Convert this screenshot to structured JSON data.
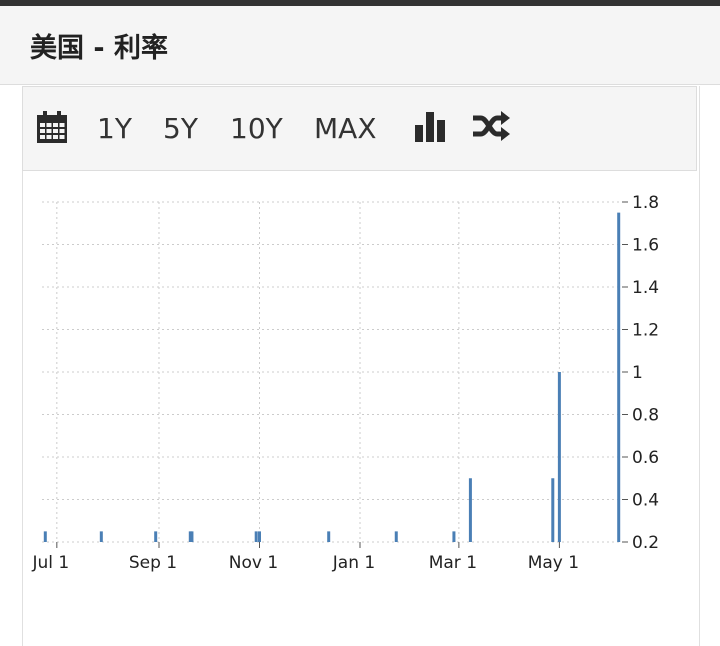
{
  "header": {
    "title": "美国 - 利率"
  },
  "toolbar": {
    "calendar_icon": "calendar-icon",
    "ranges": [
      "1Y",
      "5Y",
      "10Y",
      "MAX"
    ],
    "bar_chart_icon": "bar-chart-icon",
    "shuffle_icon": "shuffle-icon"
  },
  "colors": {
    "bar": "#4a7fb5",
    "grid": "#cccccc",
    "header_bg": "#f5f5f5"
  },
  "chart_data": {
    "type": "bar",
    "xlim": [
      "2023-06-22",
      "2024-06-08"
    ],
    "ylim": [
      0.2,
      1.8
    ],
    "yticks": [
      1.8,
      1.6,
      1.4,
      1.2,
      1,
      0.8,
      0.6,
      0.4,
      0.2
    ],
    "xticks": [
      {
        "date": "2023-07-01",
        "label": "Jul 1"
      },
      {
        "date": "2023-09-01",
        "label": "Sep 1"
      },
      {
        "date": "2023-11-01",
        "label": "Nov 1"
      },
      {
        "date": "2024-01-01",
        "label": "Jan 1"
      },
      {
        "date": "2024-03-01",
        "label": "Mar 1"
      },
      {
        "date": "2024-05-01",
        "label": "May 1"
      }
    ],
    "grid": true,
    "bars": [
      {
        "date": "2023-06-24",
        "value": 0.25
      },
      {
        "date": "2023-07-28",
        "value": 0.25
      },
      {
        "date": "2023-08-30",
        "value": 0.25
      },
      {
        "date": "2023-09-20",
        "value": 0.25
      },
      {
        "date": "2023-09-21",
        "value": 0.25
      },
      {
        "date": "2023-10-30",
        "value": 0.25
      },
      {
        "date": "2023-11-01",
        "value": 0.25
      },
      {
        "date": "2023-12-13",
        "value": 0.25
      },
      {
        "date": "2024-01-23",
        "value": 0.25
      },
      {
        "date": "2024-02-27",
        "value": 0.25
      },
      {
        "date": "2024-03-08",
        "value": 0.5
      },
      {
        "date": "2024-04-27",
        "value": 0.5
      },
      {
        "date": "2024-05-01",
        "value": 1.0
      },
      {
        "date": "2024-06-06",
        "value": 1.75
      }
    ]
  }
}
